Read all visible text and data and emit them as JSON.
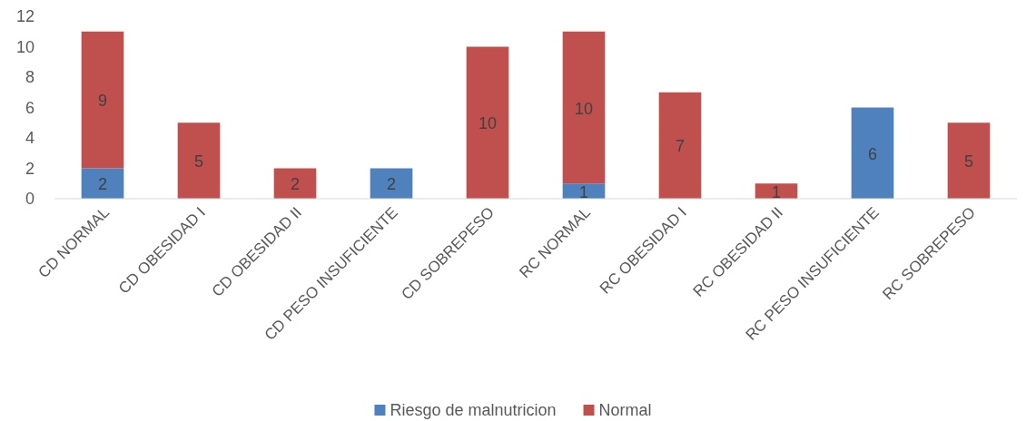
{
  "chart_data": {
    "type": "bar",
    "stacked": true,
    "categories": [
      "CD NORMAL",
      "CD OBESIDAD I",
      "CD OBESIDAD II",
      "CD PESO INSUFICIENTE",
      "CD SOBREPESO",
      "RC NORMAL",
      "RC OBESIDAD I",
      "RC OBESIDAD II",
      "RC PESO INSUFICIENTE",
      "RC SOBREPESO"
    ],
    "series": [
      {
        "name": "Riesgo de malnutricion",
        "color": "#4f81bd",
        "values": [
          2,
          null,
          null,
          2,
          null,
          1,
          null,
          null,
          6,
          null
        ]
      },
      {
        "name": "Normal",
        "color": "#c0504d",
        "values": [
          9,
          5,
          2,
          null,
          10,
          10,
          7,
          1,
          null,
          5
        ]
      }
    ],
    "ylim": [
      0,
      12
    ],
    "yticks": [
      0,
      2,
      4,
      6,
      8,
      10,
      12
    ],
    "grid": false,
    "legend": "bottom",
    "data_labels": true
  }
}
